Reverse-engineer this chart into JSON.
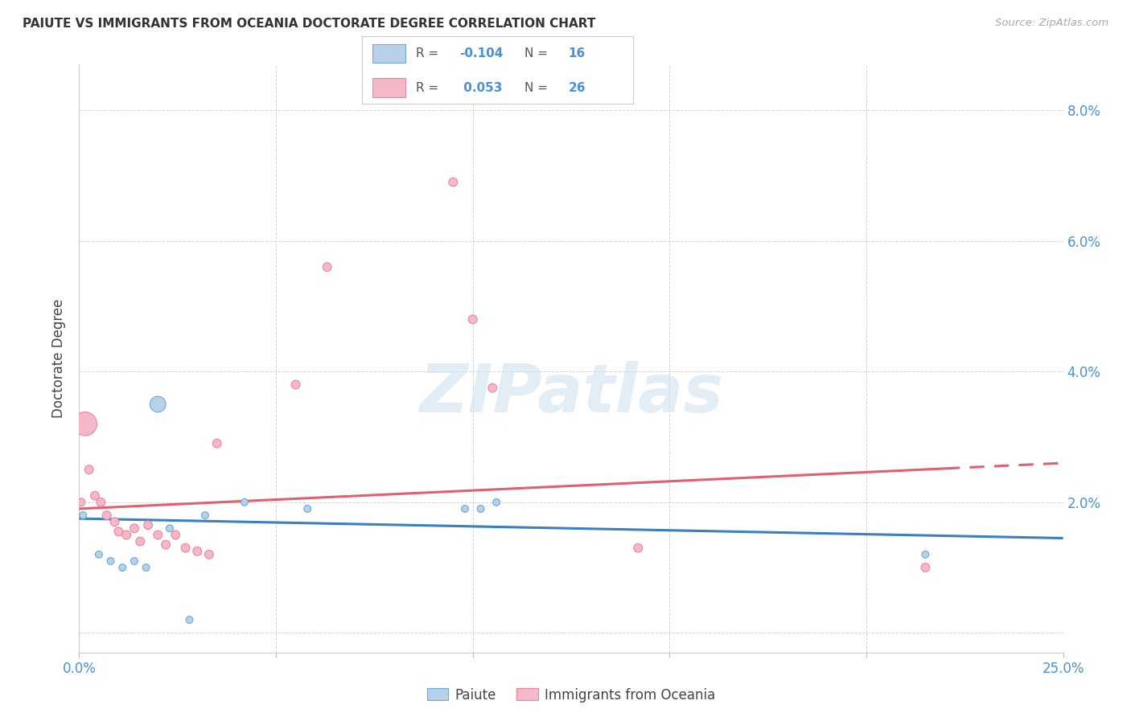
{
  "title": "PAIUTE VS IMMIGRANTS FROM OCEANIA DOCTORATE DEGREE CORRELATION CHART",
  "source": "Source: ZipAtlas.com",
  "ylabel": "Doctorate Degree",
  "xlim": [
    0.0,
    25.0
  ],
  "ylim": [
    -0.3,
    8.7
  ],
  "yticks": [
    0.0,
    2.0,
    4.0,
    6.0,
    8.0
  ],
  "xticks": [
    0.0,
    5.0,
    10.0,
    15.0,
    20.0,
    25.0
  ],
  "legend_label_blue": "Paiute",
  "legend_label_pink": "Immigrants from Oceania",
  "watermark": "ZIPatlas",
  "blue_fill": "#b8d0ea",
  "blue_edge": "#6aaad4",
  "pink_fill": "#f5b8c8",
  "pink_edge": "#e8879a",
  "blue_line_color": "#3a7fc1",
  "pink_line_color": "#e06070",
  "paiute_x": [
    0.1,
    0.5,
    0.8,
    1.1,
    1.4,
    1.7,
    2.0,
    2.3,
    2.8,
    3.2,
    4.2,
    5.8,
    9.8,
    10.2,
    10.6,
    21.5
  ],
  "paiute_y": [
    1.8,
    1.2,
    1.1,
    1.0,
    1.1,
    1.0,
    3.5,
    1.6,
    0.2,
    1.8,
    2.0,
    1.9,
    1.9,
    1.9,
    2.0,
    1.2
  ],
  "paiute_s": [
    40,
    40,
    40,
    40,
    40,
    40,
    200,
    40,
    40,
    40,
    40,
    40,
    40,
    40,
    40,
    40
  ],
  "oceania_x": [
    0.05,
    0.15,
    0.25,
    0.4,
    0.55,
    0.7,
    0.9,
    1.0,
    1.2,
    1.4,
    1.55,
    1.75,
    2.0,
    2.2,
    2.45,
    2.7,
    3.0,
    3.3,
    3.5,
    5.5,
    6.3,
    9.5,
    10.0,
    10.5,
    14.2,
    21.5
  ],
  "oceania_y": [
    2.0,
    3.2,
    2.5,
    2.1,
    2.0,
    1.8,
    1.7,
    1.55,
    1.5,
    1.6,
    1.4,
    1.65,
    1.5,
    1.35,
    1.5,
    1.3,
    1.25,
    1.2,
    2.9,
    3.8,
    5.6,
    6.9,
    4.8,
    3.75,
    1.3,
    1.0
  ],
  "oceania_s": [
    50,
    450,
    60,
    60,
    60,
    60,
    60,
    60,
    60,
    60,
    60,
    60,
    60,
    60,
    60,
    60,
    60,
    60,
    60,
    60,
    60,
    60,
    60,
    60,
    60,
    60
  ],
  "blue_trend_x": [
    0.0,
    25.0
  ],
  "blue_trend_y": [
    1.75,
    1.45
  ],
  "pink_trend_x": [
    0.0,
    25.0
  ],
  "pink_trend_y": [
    1.9,
    2.6
  ],
  "pink_trend_solid_end": 22.0,
  "pink_trend_dash_start": 22.0
}
